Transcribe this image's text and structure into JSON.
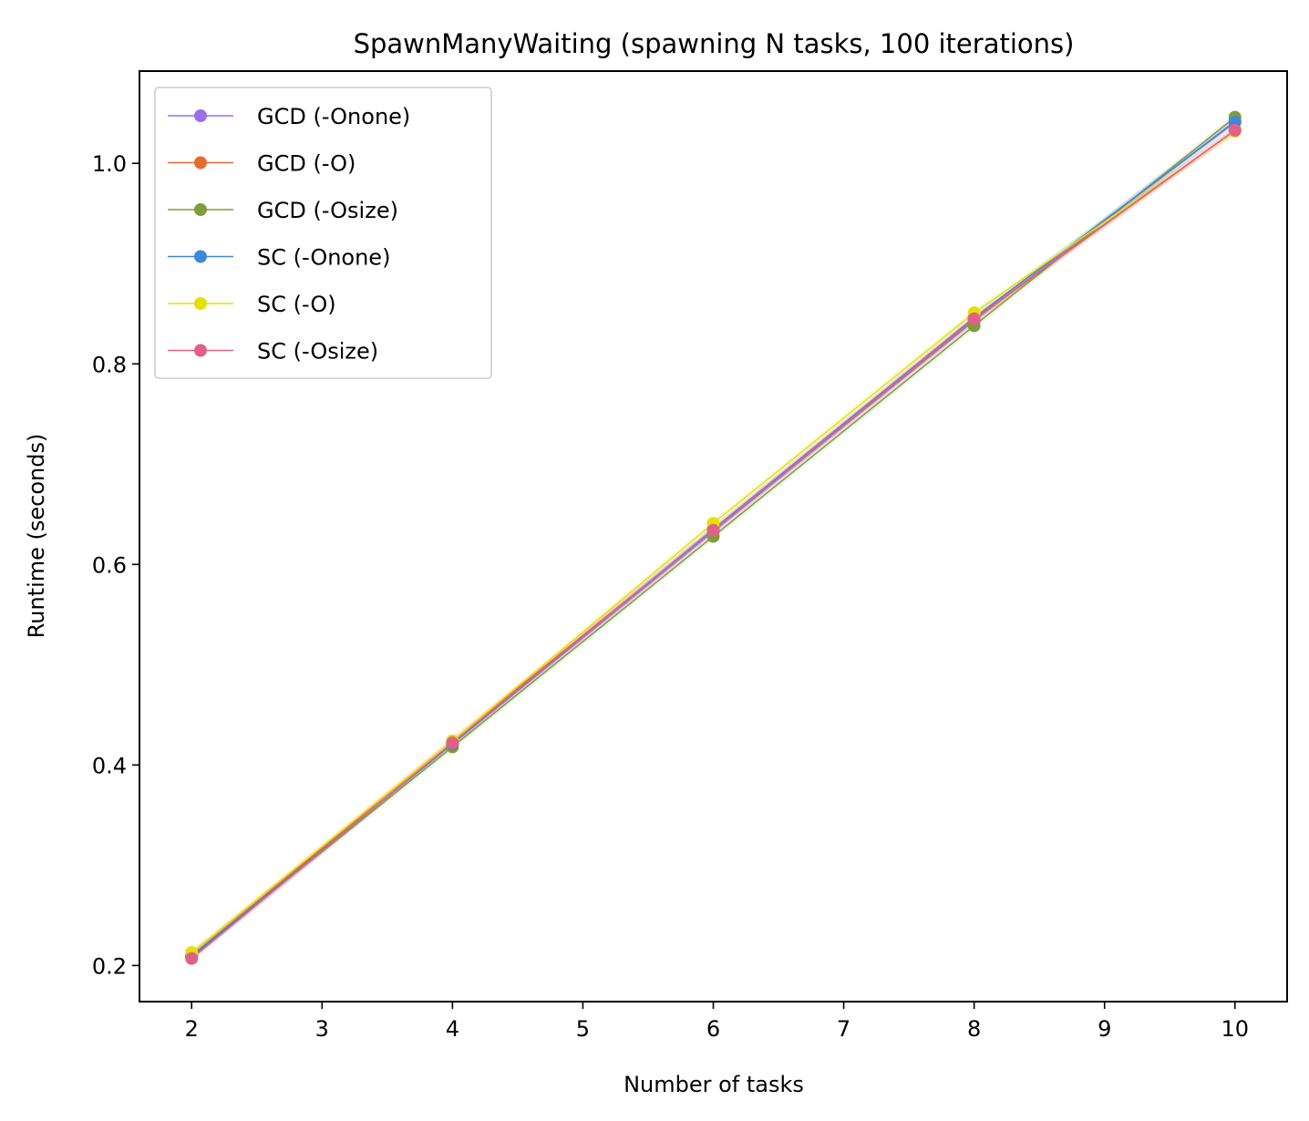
{
  "chart_data": {
    "type": "line",
    "title": "SpawnManyWaiting (spawning N tasks, 100 iterations)",
    "xlabel": "Number of tasks",
    "ylabel": "Runtime (seconds)",
    "xlim": [
      1.6,
      10.4
    ],
    "ylim": [
      0.164,
      1.092
    ],
    "x_ticks": [
      2,
      3,
      4,
      5,
      6,
      7,
      8,
      9,
      10
    ],
    "x_tick_labels": [
      "2",
      "3",
      "4",
      "5",
      "6",
      "7",
      "8",
      "9",
      "10"
    ],
    "y_ticks": [
      0.2,
      0.4,
      0.6,
      0.8,
      1.0
    ],
    "y_tick_labels": [
      "0.2",
      "0.4",
      "0.6",
      "0.8",
      "1.0"
    ],
    "legend_position": "upper-left",
    "grid": false,
    "x": [
      2,
      4,
      6,
      8,
      10
    ],
    "series": [
      {
        "name": "GCD (-Onone)",
        "color": "#9b6fe8",
        "values": [
          0.21,
          0.421,
          0.633,
          0.843,
          1.042
        ]
      },
      {
        "name": "GCD (-O)",
        "color": "#e8692e",
        "values": [
          0.21,
          0.424,
          0.634,
          0.844,
          1.033
        ]
      },
      {
        "name": "GCD (-Osize)",
        "color": "#7c9e3a",
        "values": [
          0.209,
          0.418,
          0.628,
          0.838,
          1.046
        ]
      },
      {
        "name": "SC (-Onone)",
        "color": "#3d88d8",
        "values": [
          0.209,
          0.421,
          0.635,
          0.846,
          1.041
        ]
      },
      {
        "name": "SC (-O)",
        "color": "#e6e000",
        "values": [
          0.213,
          0.424,
          0.641,
          0.851,
          1.032
        ]
      },
      {
        "name": "SC (-Osize)",
        "color": "#e0608c",
        "values": [
          0.207,
          0.422,
          0.634,
          0.845,
          1.033
        ]
      }
    ]
  }
}
